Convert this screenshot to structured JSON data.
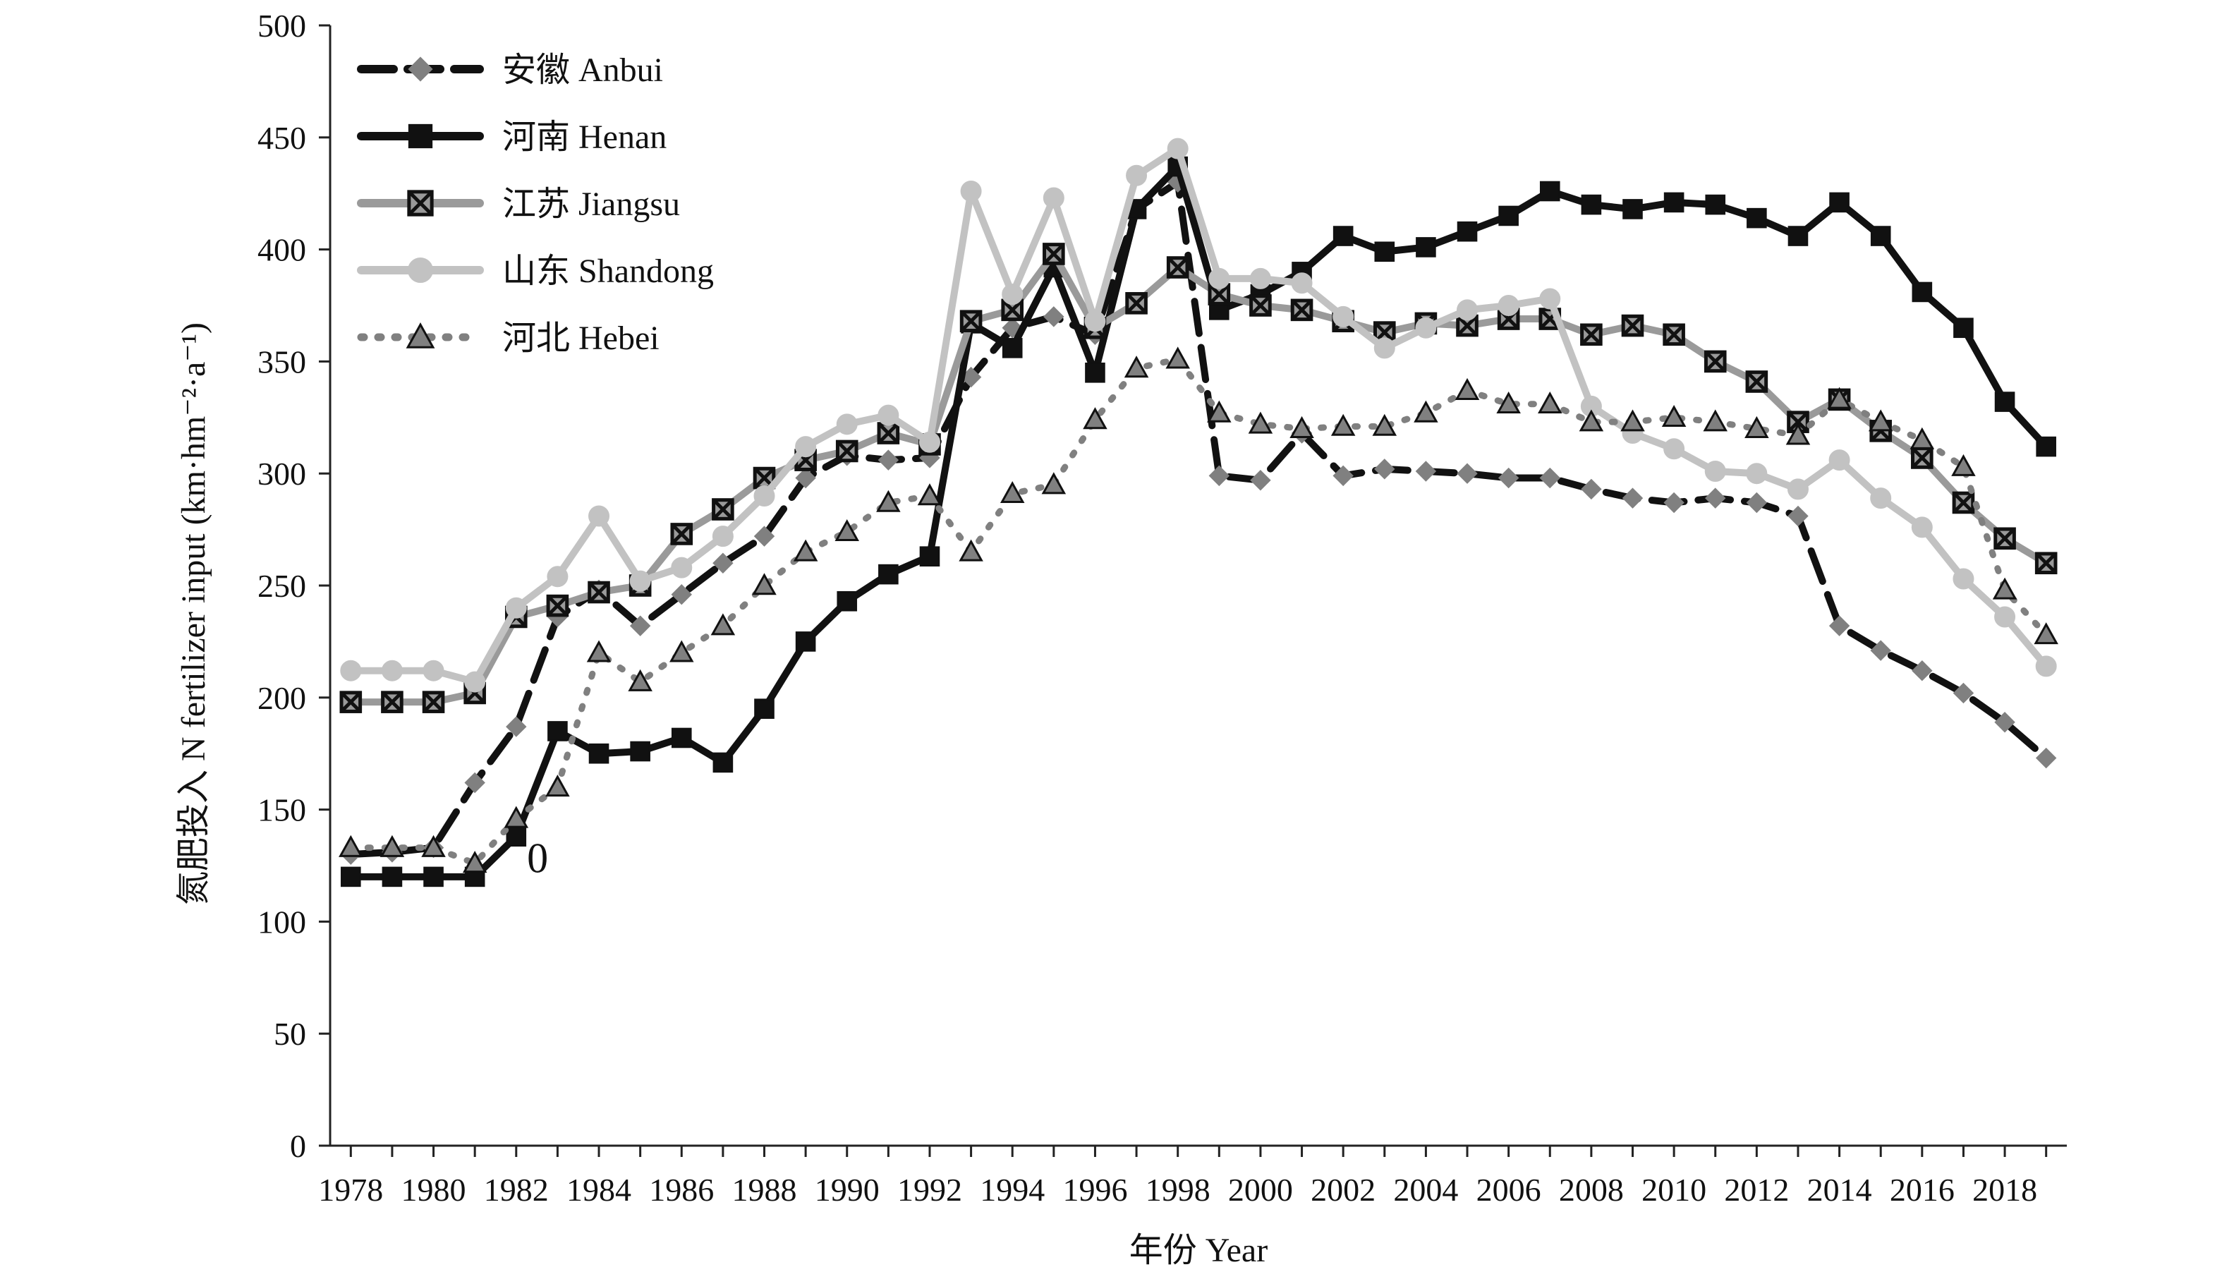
{
  "chart_data": {
    "type": "line",
    "title": "",
    "xlabel": "年份 Year",
    "ylabel": "氮肥投入 N fertilizer input (km·hm⁻²·a⁻¹)",
    "xlim": [
      1977.5,
      2019.5
    ],
    "ylim": [
      0,
      500
    ],
    "yticks": [
      "0",
      "50",
      "100",
      "150",
      "200",
      "250",
      "300",
      "350",
      "400",
      "450",
      "500"
    ],
    "xticks": [
      "1978",
      "1980",
      "1982",
      "1984",
      "1986",
      "1988",
      "1990",
      "1992",
      "1994",
      "1996",
      "1998",
      "2000",
      "2002",
      "2004",
      "2006",
      "2008",
      "2010",
      "2012",
      "2014",
      "2016",
      "2018"
    ],
    "grid": false,
    "legend_position": "top-left",
    "annotation": {
      "text": "0",
      "x": 1982.5,
      "y": 122
    },
    "x": [
      1978,
      1979,
      1980,
      1981,
      1982,
      1983,
      1984,
      1985,
      1986,
      1987,
      1988,
      1989,
      1990,
      1991,
      1992,
      1993,
      1994,
      1995,
      1996,
      1997,
      1998,
      1999,
      2000,
      2001,
      2002,
      2003,
      2004,
      2005,
      2006,
      2007,
      2008,
      2009,
      2010,
      2011,
      2012,
      2013,
      2014,
      2015,
      2016,
      2017,
      2018,
      2019
    ],
    "series": [
      {
        "name": "安徽 Anbui",
        "color": "#111111",
        "marker_color": "#808080",
        "marker": "diamond",
        "dash": "dashed",
        "values": [
          130,
          131,
          133,
          162,
          187,
          236,
          248,
          232,
          246,
          260,
          272,
          298,
          308,
          306,
          307,
          343,
          365,
          370,
          362,
          418,
          430,
          299,
          297,
          318,
          299,
          302,
          301,
          300,
          298,
          298,
          293,
          289,
          287,
          289,
          287,
          281,
          232,
          221,
          212,
          202,
          189,
          173
        ]
      },
      {
        "name": "河南 Henan",
        "color": "#111111",
        "marker_color": "#111111",
        "marker": "square",
        "dash": "solid",
        "values": [
          120,
          120,
          120,
          120,
          138,
          185,
          175,
          176,
          182,
          171,
          195,
          225,
          243,
          255,
          263,
          367,
          356,
          392,
          345,
          418,
          437,
          373,
          380,
          390,
          406,
          399,
          401,
          408,
          415,
          426,
          420,
          418,
          421,
          420,
          414,
          406,
          421,
          406,
          381,
          365,
          332,
          312
        ]
      },
      {
        "name": "江苏 Jiangsu",
        "color": "#9a9a9a",
        "marker_color": "#9a9a9a",
        "marker": "xsquare",
        "dash": "solid",
        "values": [
          198,
          198,
          198,
          202,
          236,
          241,
          247,
          250,
          273,
          284,
          298,
          306,
          310,
          318,
          313,
          368,
          373,
          398,
          365,
          376,
          392,
          380,
          375,
          373,
          368,
          363,
          367,
          366,
          369,
          369,
          362,
          366,
          362,
          350,
          341,
          323,
          333,
          319,
          307,
          287,
          271,
          260
        ]
      },
      {
        "name": "山东 Shandong",
        "color": "#c2c2c2",
        "marker_color": "#c2c2c2",
        "marker": "circle",
        "dash": "solid",
        "values": [
          212,
          212,
          212,
          207,
          240,
          254,
          281,
          252,
          258,
          272,
          290,
          312,
          322,
          326,
          314,
          426,
          380,
          423,
          368,
          433,
          445,
          387,
          387,
          385,
          370,
          356,
          365,
          373,
          375,
          378,
          330,
          318,
          311,
          301,
          300,
          293,
          306,
          289,
          276,
          253,
          236,
          214
        ]
      },
      {
        "name": "河北 Hebei",
        "color": "#808080",
        "marker_color": "#808080",
        "marker": "triangle",
        "dash": "dotted",
        "values": [
          133,
          133,
          133,
          126,
          146,
          160,
          220,
          207,
          220,
          232,
          250,
          265,
          274,
          287,
          290,
          265,
          291,
          295,
          324,
          347,
          351,
          327,
          322,
          320,
          321,
          321,
          327,
          337,
          331,
          331,
          323,
          323,
          325,
          323,
          320,
          317,
          333,
          323,
          315,
          303,
          248,
          228
        ]
      }
    ]
  }
}
